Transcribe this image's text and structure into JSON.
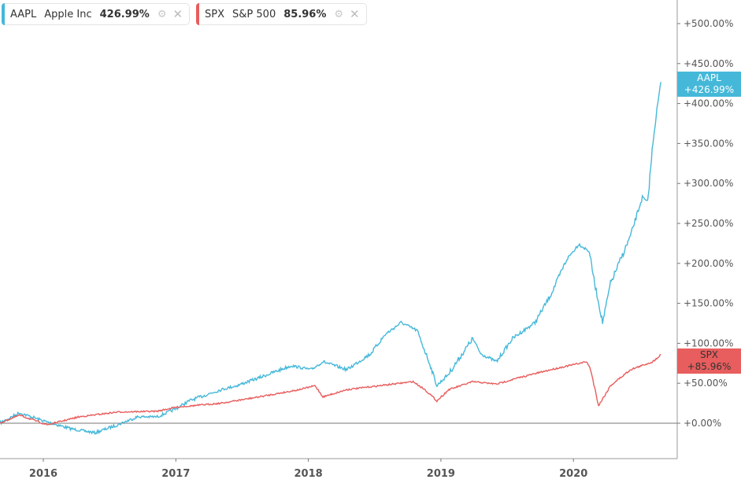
{
  "legend": [
    {
      "ticker": "AAPL",
      "name": "Apple Inc",
      "pct": "426.99%",
      "color": "#45b8d9"
    },
    {
      "ticker": "SPX",
      "name": "S&P 500",
      "pct": "85.96%",
      "color": "#e85d5d"
    }
  ],
  "tags": [
    {
      "ticker": "AAPL",
      "value": "+426.99%"
    },
    {
      "ticker": "SPX",
      "value": "+85.96%"
    }
  ],
  "chart_data": {
    "type": "line",
    "title": "",
    "xlabel": "",
    "ylabel": "",
    "x_ticks": [
      {
        "label": "2016",
        "value": 2016
      },
      {
        "label": "2017",
        "value": 2017
      },
      {
        "label": "2018",
        "value": 2018
      },
      {
        "label": "2019",
        "value": 2019
      },
      {
        "label": "2020",
        "value": 2020
      }
    ],
    "y_ticks": [
      {
        "label": "+0.00%",
        "value": 0
      },
      {
        "label": "+50.00%",
        "value": 50
      },
      {
        "label": "+100.00%",
        "value": 100
      },
      {
        "label": "+150.00%",
        "value": 150
      },
      {
        "label": "+200.00%",
        "value": 200
      },
      {
        "label": "+250.00%",
        "value": 250
      },
      {
        "label": "+300.00%",
        "value": 300
      },
      {
        "label": "+350.00%",
        "value": 350
      },
      {
        "label": "+400.00%",
        "value": 400
      },
      {
        "label": "+450.00%",
        "value": 450
      },
      {
        "label": "+500.00%",
        "value": 500
      }
    ],
    "xlim": [
      2015.67,
      2020.78
    ],
    "ylim": [
      -44,
      530
    ],
    "grid": false,
    "legend_position": "top-left",
    "series": [
      {
        "name": "AAPL",
        "color": "#45b8d9",
        "x": [
          2015.67,
          2015.82,
          2016.0,
          2016.21,
          2016.39,
          2016.56,
          2016.71,
          2016.86,
          2017.0,
          2017.1,
          2017.34,
          2017.46,
          2017.63,
          2017.87,
          2018.02,
          2018.11,
          2018.29,
          2018.47,
          2018.58,
          2018.7,
          2018.82,
          2018.91,
          2018.97,
          2019.06,
          2019.24,
          2019.3,
          2019.42,
          2019.54,
          2019.71,
          2019.83,
          2019.95,
          2020.04,
          2020.12,
          2020.16,
          2020.22,
          2020.28,
          2020.43,
          2020.52,
          2020.56,
          2020.6,
          2020.63,
          2020.66
        ],
        "values": [
          0,
          13,
          3,
          -7,
          -12,
          -2,
          8,
          8,
          18,
          28,
          42,
          47,
          57,
          72,
          67,
          77,
          67,
          87,
          111,
          126,
          116,
          77,
          47,
          62,
          106,
          87,
          77,
          106,
          126,
          161,
          205,
          224,
          215,
          175,
          126,
          175,
          234,
          283,
          276,
          352,
          392,
          427
        ]
      },
      {
        "name": "SPX",
        "color": "#e85d5d",
        "x": [
          2015.67,
          2015.82,
          2016.03,
          2016.27,
          2016.56,
          2016.86,
          2017.0,
          2017.34,
          2017.63,
          2017.93,
          2018.05,
          2018.11,
          2018.29,
          2018.64,
          2018.79,
          2018.88,
          2018.97,
          2019.06,
          2019.24,
          2019.42,
          2019.59,
          2019.83,
          2020.1,
          2020.13,
          2020.19,
          2020.28,
          2020.43,
          2020.6,
          2020.66
        ],
        "values": [
          0,
          10,
          -2,
          8,
          14,
          15,
          20,
          25,
          33,
          42,
          47,
          33,
          42,
          49,
          52,
          42,
          28,
          42,
          52,
          49,
          57,
          67,
          77,
          67,
          22,
          47,
          67,
          77,
          86
        ]
      }
    ]
  }
}
